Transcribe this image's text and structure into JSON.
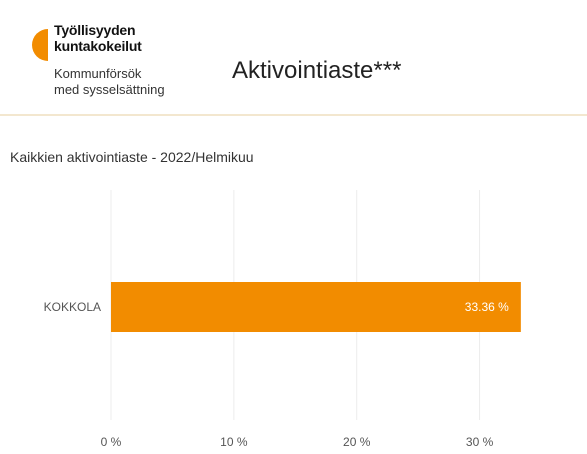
{
  "header": {
    "logo_fi_lines": [
      "Työllisyyden",
      "kuntakokeilut"
    ],
    "logo_sv_lines": [
      "Kommunförsök",
      "med sysselsättning"
    ],
    "title": "Aktivointiaste***"
  },
  "colors": {
    "accent": "#f28c00",
    "grid": "#ececec",
    "divider": "#f3e7cf"
  },
  "chart_data": {
    "type": "bar",
    "orientation": "horizontal",
    "title": "Kaikkien aktivointiaste - 2022/Helmikuu",
    "categories": [
      "KOKKOLA"
    ],
    "values": [
      33.36
    ],
    "value_labels": [
      "33.36 %"
    ],
    "xlim": [
      0,
      35
    ],
    "xticks": [
      0,
      10,
      20,
      30
    ],
    "xtick_labels": [
      "0 %",
      "10 %",
      "20 %",
      "30 %"
    ],
    "grid": true,
    "legend": "none"
  }
}
